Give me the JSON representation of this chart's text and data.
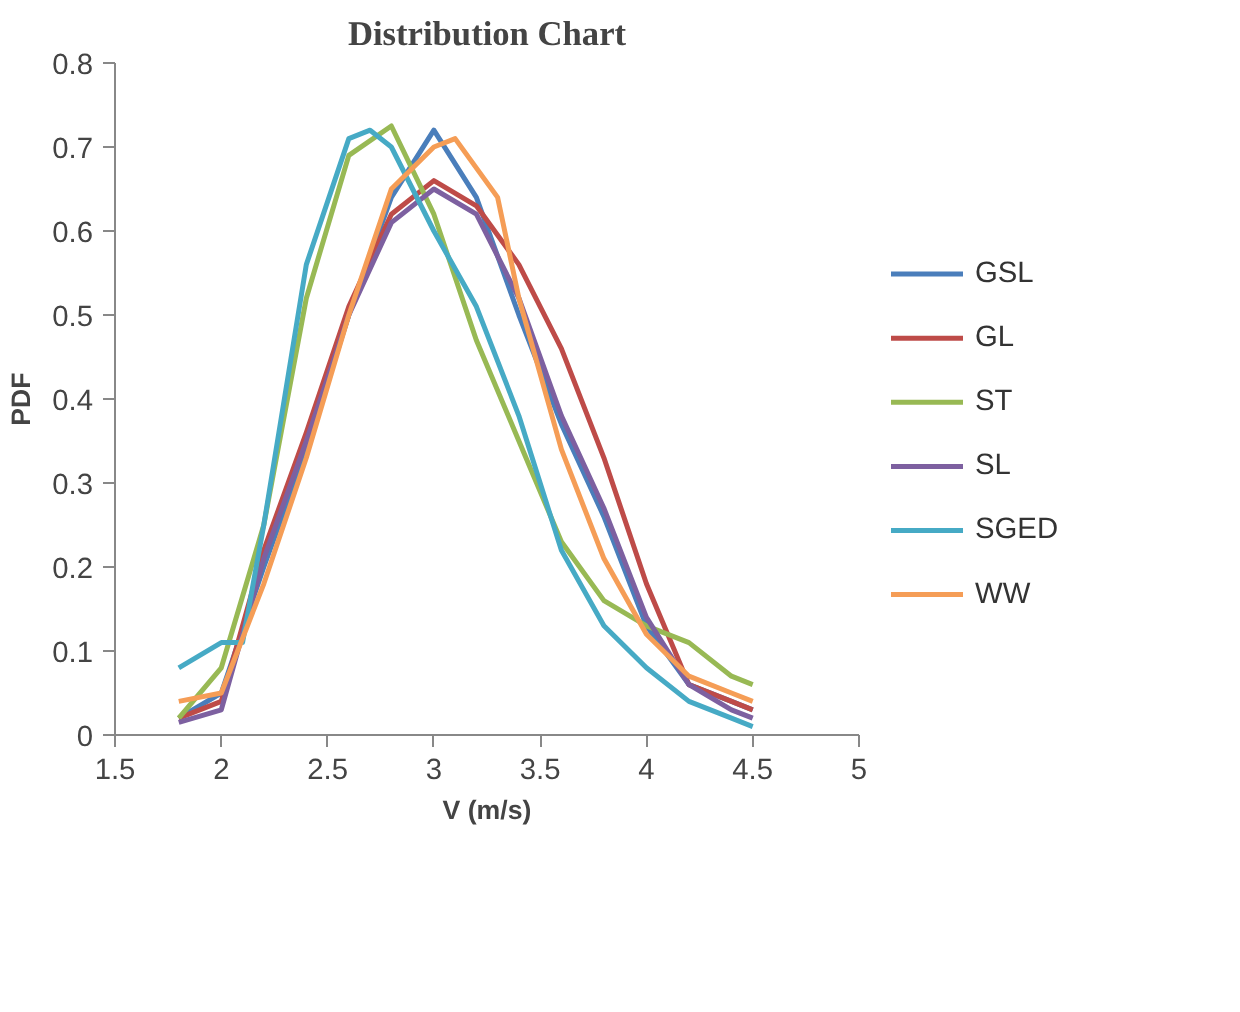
{
  "chart_data": {
    "type": "line",
    "title": "Distribution Chart",
    "xlabel": "V (m/s)",
    "ylabel": "PDF",
    "xlim": [
      1.5,
      5
    ],
    "xticks": [
      1.5,
      2,
      2.5,
      3,
      3.5,
      4,
      4.5,
      5
    ],
    "ylim": [
      0,
      0.8
    ],
    "yticks": [
      0,
      0.1,
      0.2,
      0.3,
      0.4,
      0.5,
      0.6,
      0.7,
      0.8
    ],
    "grid": false,
    "legend": "right",
    "marker": "none",
    "line_style": "solid",
    "series": [
      {
        "name": "GSL",
        "color": "#4a7ebb",
        "x": [
          1.8,
          2.0,
          2.2,
          2.4,
          2.6,
          2.8,
          3.0,
          3.2,
          3.4,
          3.6,
          3.8,
          4.0,
          4.2,
          4.4,
          4.5
        ],
        "values": [
          0.02,
          0.05,
          0.2,
          0.34,
          0.5,
          0.64,
          0.72,
          0.64,
          0.5,
          0.37,
          0.26,
          0.13,
          0.06,
          0.04,
          0.03
        ]
      },
      {
        "name": "GL",
        "color": "#be4b48",
        "x": [
          1.8,
          2.0,
          2.2,
          2.4,
          2.6,
          2.8,
          3.0,
          3.2,
          3.4,
          3.6,
          3.8,
          4.0,
          4.2,
          4.4,
          4.5
        ],
        "values": [
          0.02,
          0.04,
          0.22,
          0.36,
          0.51,
          0.62,
          0.66,
          0.63,
          0.56,
          0.46,
          0.33,
          0.18,
          0.06,
          0.04,
          0.03
        ]
      },
      {
        "name": "ST",
        "color": "#98b954",
        "x": [
          1.8,
          2.0,
          2.2,
          2.4,
          2.6,
          2.8,
          3.0,
          3.2,
          3.4,
          3.6,
          3.8,
          4.0,
          4.2,
          4.4,
          4.5
        ],
        "values": [
          0.02,
          0.08,
          0.25,
          0.52,
          0.69,
          0.725,
          0.62,
          0.47,
          0.35,
          0.23,
          0.16,
          0.13,
          0.11,
          0.07,
          0.06
        ]
      },
      {
        "name": "SL",
        "color": "#7d60a0",
        "x": [
          1.8,
          2.0,
          2.2,
          2.4,
          2.6,
          2.8,
          3.0,
          3.2,
          3.4,
          3.6,
          3.8,
          4.0,
          4.2,
          4.4,
          4.5
        ],
        "values": [
          0.015,
          0.03,
          0.21,
          0.35,
          0.5,
          0.61,
          0.65,
          0.62,
          0.52,
          0.38,
          0.27,
          0.14,
          0.06,
          0.03,
          0.02
        ]
      },
      {
        "name": "SGED",
        "color": "#46aac5",
        "x": [
          1.8,
          2.0,
          2.1,
          2.2,
          2.4,
          2.6,
          2.7,
          2.8,
          3.0,
          3.2,
          3.4,
          3.6,
          3.8,
          4.0,
          4.2,
          4.4,
          4.5
        ],
        "values": [
          0.08,
          0.11,
          0.11,
          0.25,
          0.56,
          0.71,
          0.72,
          0.7,
          0.6,
          0.51,
          0.38,
          0.22,
          0.13,
          0.08,
          0.04,
          0.02,
          0.01
        ]
      },
      {
        "name": "WW",
        "color": "#f59d56",
        "x": [
          1.8,
          2.0,
          2.2,
          2.4,
          2.6,
          2.8,
          3.0,
          3.1,
          3.3,
          3.4,
          3.6,
          3.8,
          4.0,
          4.2,
          4.4,
          4.5
        ],
        "values": [
          0.04,
          0.05,
          0.18,
          0.33,
          0.5,
          0.65,
          0.7,
          0.71,
          0.64,
          0.52,
          0.34,
          0.21,
          0.12,
          0.07,
          0.05,
          0.04
        ]
      }
    ]
  }
}
